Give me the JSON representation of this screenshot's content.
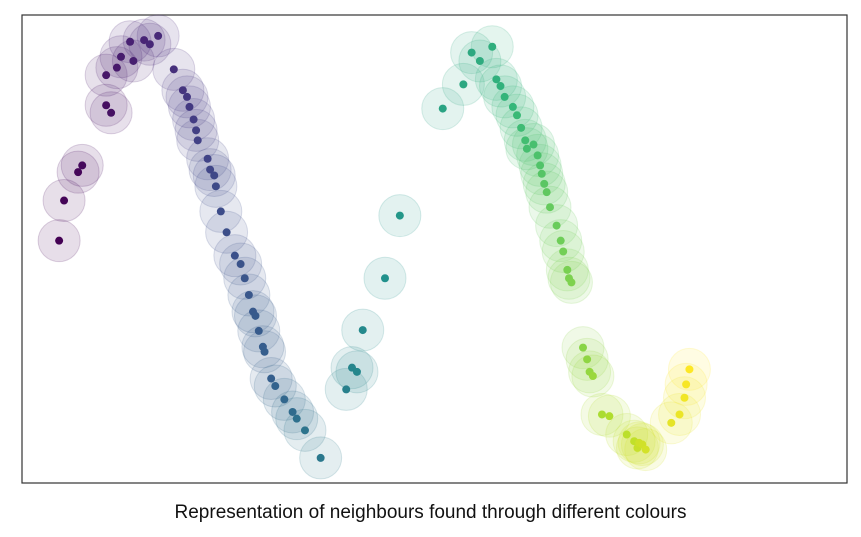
{
  "caption": "Representation of neighbours found through different colours",
  "chart_data": {
    "type": "scatter",
    "title": "",
    "xlabel": "",
    "ylabel": "",
    "axes_visible": false,
    "xlim": [
      0,
      1000
    ],
    "ylim": [
      0,
      560
    ],
    "neighbour_halo": true,
    "colormap": "viridis",
    "frame_color": "#333333",
    "points": [
      {
        "x": 45,
        "y": 290,
        "c": 0.0
      },
      {
        "x": 51,
        "y": 338,
        "c": 0.01
      },
      {
        "x": 68,
        "y": 372,
        "c": 0.02
      },
      {
        "x": 73,
        "y": 380,
        "c": 0.03
      },
      {
        "x": 102,
        "y": 452,
        "c": 0.05
      },
      {
        "x": 108,
        "y": 443,
        "c": 0.06
      },
      {
        "x": 102,
        "y": 488,
        "c": 0.08
      },
      {
        "x": 115,
        "y": 497,
        "c": 0.09
      },
      {
        "x": 120,
        "y": 510,
        "c": 0.1
      },
      {
        "x": 135,
        "y": 505,
        "c": 0.11
      },
      {
        "x": 131,
        "y": 528,
        "c": 0.12
      },
      {
        "x": 148,
        "y": 530,
        "c": 0.13
      },
      {
        "x": 155,
        "y": 525,
        "c": 0.14
      },
      {
        "x": 165,
        "y": 535,
        "c": 0.15
      },
      {
        "x": 184,
        "y": 495,
        "c": 0.17
      },
      {
        "x": 195,
        "y": 470,
        "c": 0.19
      },
      {
        "x": 200,
        "y": 462,
        "c": 0.2
      },
      {
        "x": 203,
        "y": 450,
        "c": 0.21
      },
      {
        "x": 208,
        "y": 435,
        "c": 0.22
      },
      {
        "x": 211,
        "y": 422,
        "c": 0.23
      },
      {
        "x": 213,
        "y": 410,
        "c": 0.24
      },
      {
        "x": 225,
        "y": 388,
        "c": 0.25
      },
      {
        "x": 228,
        "y": 375,
        "c": 0.26
      },
      {
        "x": 233,
        "y": 368,
        "c": 0.27
      },
      {
        "x": 235,
        "y": 355,
        "c": 0.28
      },
      {
        "x": 241,
        "y": 325,
        "c": 0.29
      },
      {
        "x": 248,
        "y": 300,
        "c": 0.3
      },
      {
        "x": 258,
        "y": 272,
        "c": 0.31
      },
      {
        "x": 265,
        "y": 262,
        "c": 0.32
      },
      {
        "x": 270,
        "y": 245,
        "c": 0.33
      },
      {
        "x": 275,
        "y": 225,
        "c": 0.34
      },
      {
        "x": 280,
        "y": 205,
        "c": 0.35
      },
      {
        "x": 283,
        "y": 200,
        "c": 0.355
      },
      {
        "x": 287,
        "y": 182,
        "c": 0.36
      },
      {
        "x": 292,
        "y": 163,
        "c": 0.37
      },
      {
        "x": 294,
        "y": 157,
        "c": 0.375
      },
      {
        "x": 302,
        "y": 125,
        "c": 0.38
      },
      {
        "x": 307,
        "y": 116,
        "c": 0.39
      },
      {
        "x": 318,
        "y": 100,
        "c": 0.4
      },
      {
        "x": 328,
        "y": 85,
        "c": 0.41
      },
      {
        "x": 333,
        "y": 77,
        "c": 0.42
      },
      {
        "x": 343,
        "y": 63,
        "c": 0.43
      },
      {
        "x": 362,
        "y": 30,
        "c": 0.44
      },
      {
        "x": 393,
        "y": 112,
        "c": 0.46
      },
      {
        "x": 400,
        "y": 138,
        "c": 0.47
      },
      {
        "x": 406,
        "y": 133,
        "c": 0.475
      },
      {
        "x": 413,
        "y": 183,
        "c": 0.48
      },
      {
        "x": 440,
        "y": 245,
        "c": 0.5
      },
      {
        "x": 458,
        "y": 320,
        "c": 0.52
      },
      {
        "x": 510,
        "y": 448,
        "c": 0.56
      },
      {
        "x": 535,
        "y": 477,
        "c": 0.575
      },
      {
        "x": 545,
        "y": 515,
        "c": 0.58
      },
      {
        "x": 555,
        "y": 505,
        "c": 0.59
      },
      {
        "x": 570,
        "y": 522,
        "c": 0.6
      },
      {
        "x": 575,
        "y": 483,
        "c": 0.605
      },
      {
        "x": 580,
        "y": 475,
        "c": 0.61
      },
      {
        "x": 585,
        "y": 462,
        "c": 0.62
      },
      {
        "x": 595,
        "y": 450,
        "c": 0.63
      },
      {
        "x": 600,
        "y": 440,
        "c": 0.64
      },
      {
        "x": 605,
        "y": 425,
        "c": 0.65
      },
      {
        "x": 610,
        "y": 410,
        "c": 0.66
      },
      {
        "x": 612,
        "y": 400,
        "c": 0.665
      },
      {
        "x": 620,
        "y": 405,
        "c": 0.67
      },
      {
        "x": 625,
        "y": 392,
        "c": 0.68
      },
      {
        "x": 628,
        "y": 380,
        "c": 0.69
      },
      {
        "x": 630,
        "y": 370,
        "c": 0.7
      },
      {
        "x": 633,
        "y": 358,
        "c": 0.71
      },
      {
        "x": 636,
        "y": 348,
        "c": 0.72
      },
      {
        "x": 640,
        "y": 330,
        "c": 0.73
      },
      {
        "x": 648,
        "y": 308,
        "c": 0.74
      },
      {
        "x": 653,
        "y": 290,
        "c": 0.75
      },
      {
        "x": 656,
        "y": 277,
        "c": 0.76
      },
      {
        "x": 661,
        "y": 255,
        "c": 0.77
      },
      {
        "x": 663,
        "y": 245,
        "c": 0.775
      },
      {
        "x": 666,
        "y": 240,
        "c": 0.78
      },
      {
        "x": 680,
        "y": 162,
        "c": 0.8
      },
      {
        "x": 685,
        "y": 148,
        "c": 0.81
      },
      {
        "x": 688,
        "y": 133,
        "c": 0.82
      },
      {
        "x": 692,
        "y": 128,
        "c": 0.83
      },
      {
        "x": 703,
        "y": 82,
        "c": 0.86
      },
      {
        "x": 712,
        "y": 80,
        "c": 0.87
      },
      {
        "x": 733,
        "y": 58,
        "c": 0.89
      },
      {
        "x": 742,
        "y": 50,
        "c": 0.9
      },
      {
        "x": 746,
        "y": 42,
        "c": 0.91
      },
      {
        "x": 748,
        "y": 48,
        "c": 0.92
      },
      {
        "x": 752,
        "y": 46,
        "c": 0.925
      },
      {
        "x": 756,
        "y": 40,
        "c": 0.93
      },
      {
        "x": 787,
        "y": 72,
        "c": 0.96
      },
      {
        "x": 797,
        "y": 82,
        "c": 0.97
      },
      {
        "x": 803,
        "y": 102,
        "c": 0.98
      },
      {
        "x": 805,
        "y": 118,
        "c": 0.99
      },
      {
        "x": 809,
        "y": 136,
        "c": 1.0
      }
    ]
  }
}
